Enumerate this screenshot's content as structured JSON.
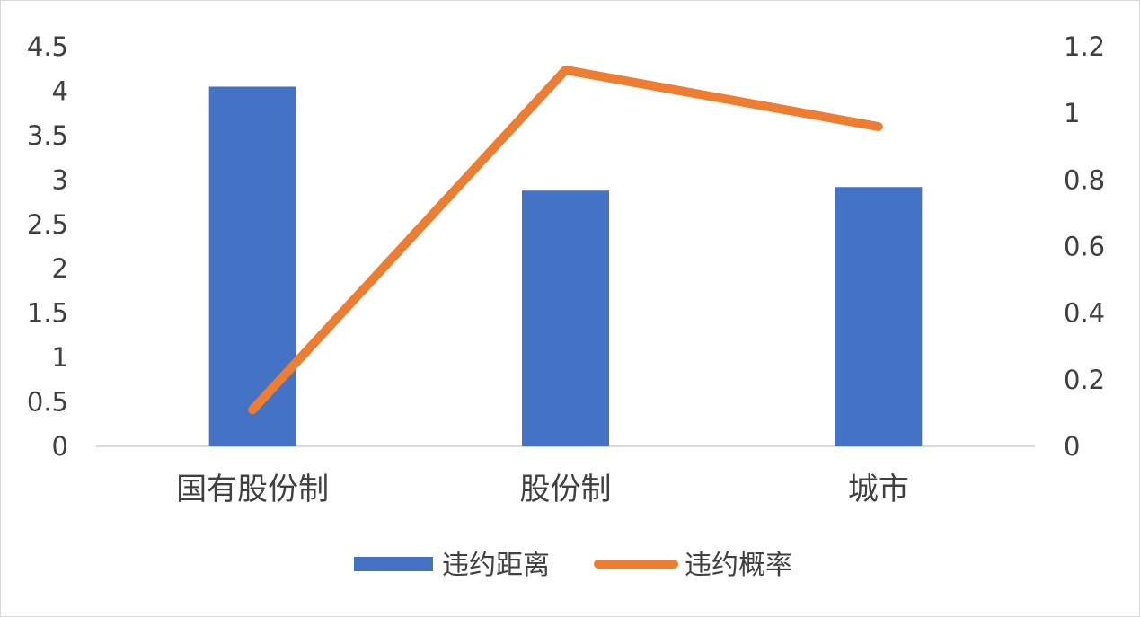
{
  "chart_data": {
    "type": "bar",
    "categories": [
      "国有股份制",
      "股份制",
      "城市"
    ],
    "series": [
      {
        "name": "违约距离",
        "type": "bar",
        "axis": "left",
        "color": "#4472C4",
        "values": [
          4.05,
          2.88,
          2.92
        ]
      },
      {
        "name": "违约概率",
        "type": "line",
        "axis": "right",
        "color": "#ED7D31",
        "values": [
          0.11,
          1.13,
          0.96
        ]
      }
    ],
    "y_left": {
      "min": 0,
      "max": 4.5,
      "ticks": [
        "0",
        "0.5",
        "1",
        "1.5",
        "2",
        "2.5",
        "3",
        "3.5",
        "4",
        "4.5"
      ]
    },
    "y_right": {
      "min": 0,
      "max": 1.2,
      "ticks": [
        "0",
        "0.2",
        "0.4",
        "0.6",
        "0.8",
        "1",
        "1.2"
      ]
    },
    "grid": false,
    "legend_position": "bottom"
  }
}
